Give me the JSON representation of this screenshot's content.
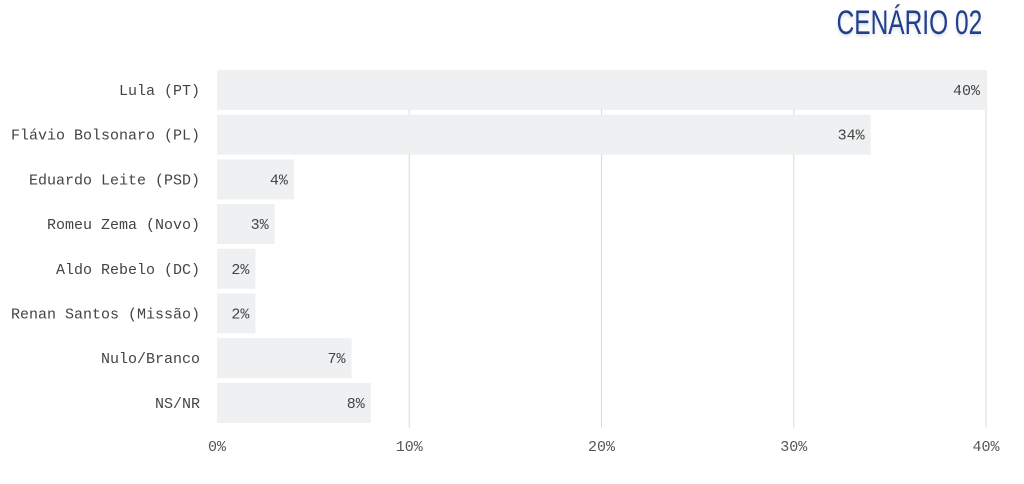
{
  "chart_data": {
    "type": "bar",
    "orientation": "horizontal",
    "title": "CENÁRIO 02",
    "categories": [
      "Lula (PT)",
      "Flávio Bolsonaro (PL)",
      "Eduardo Leite (PSD)",
      "Romeu Zema (Novo)",
      "Aldo Rebelo (DC)",
      "Renan Santos (Missão)",
      "Nulo/Branco",
      "NS/NR"
    ],
    "values": [
      40,
      34,
      4,
      3,
      2,
      2,
      7,
      8
    ],
    "data_labels": [
      "40%",
      "34%",
      "4%",
      "3%",
      "2%",
      "2%",
      "7%",
      "8%"
    ],
    "xlim": [
      0,
      40
    ],
    "xticks": [
      0,
      10,
      20,
      30,
      40
    ],
    "xtick_labels": [
      "0%",
      "10%",
      "20%",
      "30%",
      "40%"
    ],
    "grid": "vertical",
    "colors": {
      "bar": "#eef0f1",
      "title": "#1f3f8f",
      "grid": "#d8d8d8",
      "text": "#444444"
    }
  }
}
